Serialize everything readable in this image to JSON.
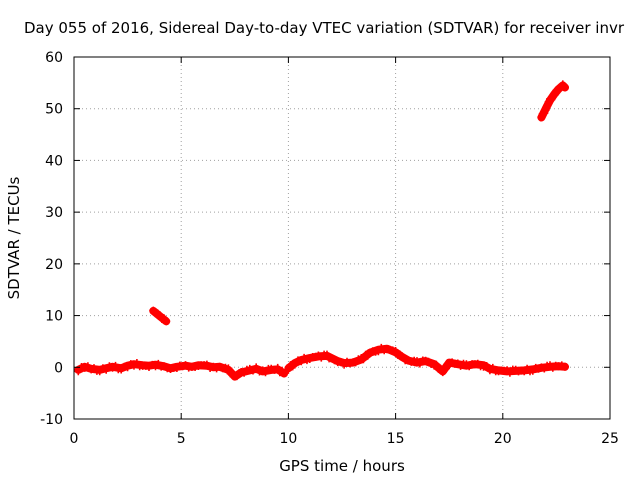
{
  "chart_data": {
    "type": "scatter",
    "title": "Day 055 of 2016, Sidereal Day-to-day VTEC variation (SDTVAR) for receiver invr",
    "xlabel": "GPS time / hours",
    "ylabel": "SDTVAR / TECUs",
    "xlim": [
      0,
      25
    ],
    "ylim": [
      -10,
      60
    ],
    "xticks": [
      0,
      5,
      10,
      15,
      20,
      25
    ],
    "yticks": [
      -10,
      0,
      10,
      20,
      30,
      40,
      50,
      60
    ],
    "grid": true,
    "marker": "plus",
    "series": [
      {
        "name": "SDTVAR",
        "color": "#ff0000",
        "segments": [
          [
            [
              0.2,
              -0.5
            ],
            [
              0.5,
              0.1
            ],
            [
              0.8,
              -0.3
            ],
            [
              1.2,
              -0.5
            ],
            [
              1.5,
              -0.2
            ],
            [
              1.8,
              0.1
            ],
            [
              2.2,
              -0.2
            ],
            [
              2.5,
              0.3
            ],
            [
              2.8,
              0.6
            ],
            [
              3.2,
              0.4
            ],
            [
              3.5,
              0.3
            ],
            [
              3.8,
              0.5
            ],
            [
              4.2,
              0.2
            ],
            [
              4.5,
              -0.2
            ],
            [
              4.8,
              0.1
            ],
            [
              5.2,
              0.3
            ],
            [
              5.5,
              0.1
            ],
            [
              5.8,
              0.4
            ],
            [
              6.2,
              0.3
            ],
            [
              6.5,
              0.0
            ],
            [
              6.8,
              0.1
            ],
            [
              7.2,
              -0.5
            ],
            [
              7.5,
              -1.8
            ],
            [
              7.8,
              -1.0
            ],
            [
              8.2,
              -0.6
            ],
            [
              8.5,
              -0.3
            ],
            [
              8.8,
              -0.8
            ],
            [
              9.2,
              -0.5
            ],
            [
              9.5,
              -0.4
            ],
            [
              9.8,
              -1.2
            ]
          ],
          [
            [
              10.0,
              -0.2
            ],
            [
              10.3,
              0.8
            ],
            [
              10.6,
              1.4
            ],
            [
              11.0,
              1.8
            ],
            [
              11.4,
              2.1
            ],
            [
              11.8,
              2.2
            ],
            [
              12.0,
              1.8
            ],
            [
              12.3,
              1.2
            ],
            [
              12.6,
              0.8
            ],
            [
              13.0,
              0.9
            ],
            [
              13.4,
              1.5
            ],
            [
              13.8,
              2.8
            ],
            [
              14.2,
              3.4
            ],
            [
              14.6,
              3.6
            ],
            [
              15.0,
              2.9
            ],
            [
              15.3,
              2.0
            ],
            [
              15.6,
              1.3
            ],
            [
              16.0,
              0.9
            ],
            [
              16.4,
              1.2
            ],
            [
              16.8,
              0.6
            ],
            [
              17.2,
              -0.8
            ],
            [
              17.5,
              0.9
            ],
            [
              17.9,
              0.6
            ],
            [
              18.3,
              0.3
            ],
            [
              18.7,
              0.6
            ],
            [
              19.1,
              0.4
            ],
            [
              19.4,
              -0.3
            ],
            [
              19.8,
              -0.6
            ],
            [
              20.2,
              -0.8
            ],
            [
              20.6,
              -0.7
            ],
            [
              21.0,
              -0.6
            ],
            [
              21.4,
              -0.4
            ],
            [
              21.8,
              -0.1
            ],
            [
              22.2,
              0.1
            ],
            [
              22.6,
              0.2
            ],
            [
              22.9,
              0.1
            ]
          ],
          [
            [
              3.7,
              10.9
            ],
            [
              4.0,
              9.9
            ],
            [
              4.3,
              8.9
            ]
          ],
          [
            [
              21.8,
              48.3
            ],
            [
              22.0,
              50.0
            ],
            [
              22.2,
              51.6
            ],
            [
              22.4,
              52.8
            ],
            [
              22.6,
              53.8
            ],
            [
              22.8,
              54.5
            ],
            [
              22.9,
              54.1
            ]
          ]
        ]
      }
    ]
  }
}
